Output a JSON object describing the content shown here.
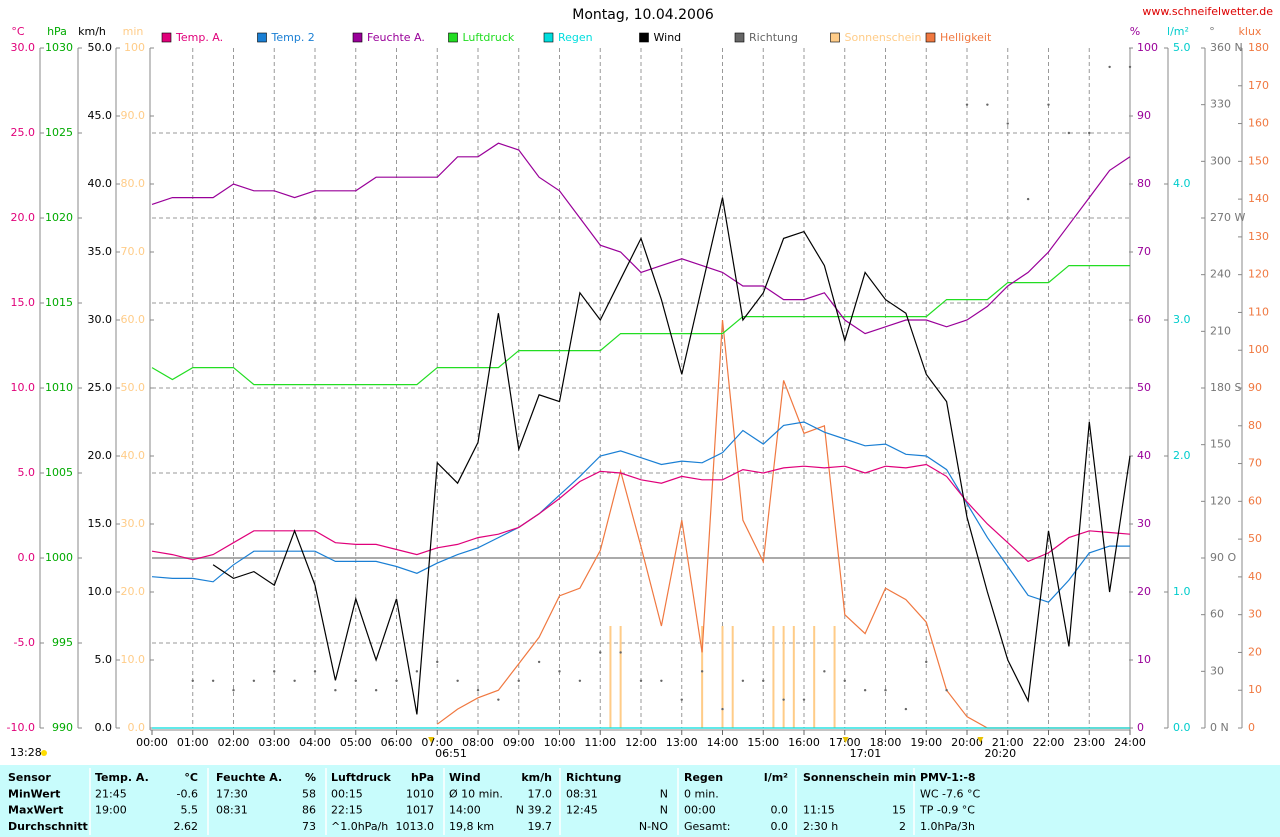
{
  "chart_data": {
    "type": "line",
    "title": "Montag, 10.04.2006",
    "source": "www.schneifelwetter.de",
    "updated": "13:28",
    "xlim": [
      0,
      24
    ],
    "xticks": [
      {
        "value": 0,
        "label": "00:00"
      },
      {
        "value": 1,
        "label": "01:00"
      },
      {
        "value": 2,
        "label": "02:00"
      },
      {
        "value": 3,
        "label": "03:00"
      },
      {
        "value": 4,
        "label": "04:00"
      },
      {
        "value": 5,
        "label": "05:00"
      },
      {
        "value": 6,
        "label": "06:00"
      },
      {
        "value": 7,
        "label": "07:00"
      },
      {
        "value": 8,
        "label": "08:00"
      },
      {
        "value": 9,
        "label": "09:00"
      },
      {
        "value": 10,
        "label": "10:00"
      },
      {
        "value": 11,
        "label": "11:00"
      },
      {
        "value": 12,
        "label": "12:00"
      },
      {
        "value": 13,
        "label": "13:00"
      },
      {
        "value": 14,
        "label": "14:00"
      },
      {
        "value": 15,
        "label": "15:00"
      },
      {
        "value": 16,
        "label": "16:00"
      },
      {
        "value": 17,
        "label": "17:00"
      },
      {
        "value": 18,
        "label": "18:00"
      },
      {
        "value": 19,
        "label": "19:00"
      },
      {
        "value": 20,
        "label": "20:00"
      },
      {
        "value": 21,
        "label": "21:00"
      },
      {
        "value": 22,
        "label": "22:00"
      },
      {
        "value": 23,
        "label": "23:00"
      },
      {
        "value": 24,
        "label": "24:00"
      }
    ],
    "grid": true,
    "events": [
      {
        "x": 6.85,
        "label": "06:51"
      },
      {
        "x": 17.02,
        "label": "17:01"
      },
      {
        "x": 20.33,
        "label": "20:20"
      }
    ],
    "axes": [
      {
        "unit": "°C",
        "color": "#e0007a",
        "grid": true,
        "lim": [
          -10,
          30
        ],
        "ticks": [
          {
            "value": -10,
            "label": "-10.0"
          },
          {
            "value": -5,
            "label": "-5.0"
          },
          {
            "value": 0,
            "label": "0.0"
          },
          {
            "value": 5,
            "label": "5.0"
          },
          {
            "value": 10,
            "label": "10.0"
          },
          {
            "value": 15,
            "label": "15.0"
          },
          {
            "value": 20,
            "label": "20.0"
          },
          {
            "value": 25,
            "label": "25.0"
          },
          {
            "value": 30,
            "label": "30.0"
          }
        ]
      },
      {
        "unit": "hPa",
        "color": "#00aa00",
        "lim": [
          990,
          1030
        ],
        "ticks": [
          990,
          995,
          1000,
          1005,
          1010,
          1015,
          1020,
          1025,
          1030
        ]
      },
      {
        "unit": "km/h",
        "color": "#000000",
        "lim": [
          0,
          50
        ],
        "ticks": [
          {
            "value": 0,
            "label": "0.0"
          },
          {
            "value": 5,
            "label": "5.0"
          },
          {
            "value": 10,
            "label": "10.0"
          },
          {
            "value": 15,
            "label": "15.0"
          },
          {
            "value": 20,
            "label": "20.0"
          },
          {
            "value": 25,
            "label": "25.0"
          },
          {
            "value": 30,
            "label": "30.0"
          },
          {
            "value": 35,
            "label": "35.0"
          },
          {
            "value": 40,
            "label": "40.0"
          },
          {
            "value": 45,
            "label": "45.0"
          },
          {
            "value": 50,
            "label": "50.0"
          }
        ]
      },
      {
        "unit": "min",
        "color": "#ffcc88",
        "lim": [
          0,
          100
        ],
        "ticks": [
          {
            "value": 0,
            "label": "0.0"
          },
          {
            "value": 10,
            "label": "10.0"
          },
          {
            "value": 20,
            "label": "20.0"
          },
          {
            "value": 30,
            "label": "30.0"
          },
          {
            "value": 40,
            "label": "40.0"
          },
          {
            "value": 50,
            "label": "50.0"
          },
          {
            "value": 60,
            "label": "60.0"
          },
          {
            "value": 70,
            "label": "70.0"
          },
          {
            "value": 80,
            "label": "80.0"
          },
          {
            "value": 90,
            "label": "90.0"
          },
          100
        ]
      },
      {
        "unit": "%",
        "color": "#990099",
        "lim": [
          0,
          100
        ],
        "ticks": [
          0,
          10,
          20,
          30,
          40,
          50,
          60,
          70,
          80,
          90,
          100
        ]
      },
      {
        "unit": "l/m²",
        "color": "#00cccc",
        "lim": [
          0,
          5
        ],
        "ticks": [
          {
            "value": 0,
            "label": "0.0"
          },
          {
            "value": 1,
            "label": "1.0"
          },
          {
            "value": 2,
            "label": "2.0"
          },
          {
            "value": 3,
            "label": "3.0"
          },
          {
            "value": 4,
            "label": "4.0"
          },
          {
            "value": 5,
            "label": "5.0"
          }
        ]
      },
      {
        "unit": "°",
        "color": "#777777",
        "lim": [
          0,
          360
        ],
        "ticks": [
          {
            "value": 0,
            "label": "0 N"
          },
          30,
          60,
          {
            "value": 90,
            "label": "90 O"
          },
          120,
          150,
          {
            "value": 180,
            "label": "180 S"
          },
          210,
          240,
          {
            "value": 270,
            "label": "270 W"
          },
          300,
          330,
          {
            "value": 360,
            "label": "360 N"
          }
        ]
      },
      {
        "unit": "klux",
        "color": "#f07840",
        "lim": [
          0,
          180
        ],
        "ticks": [
          0,
          10,
          20,
          30,
          40,
          50,
          60,
          70,
          80,
          90,
          100,
          110,
          120,
          130,
          140,
          150,
          160,
          170,
          180
        ]
      }
    ],
    "x": [
      0,
      0.5,
      1,
      1.5,
      2,
      2.5,
      3,
      3.5,
      4,
      4.5,
      5,
      5.5,
      6,
      6.5,
      7,
      7.5,
      8,
      8.5,
      9,
      9.5,
      10,
      10.5,
      11,
      11.5,
      12,
      12.5,
      13,
      13.5,
      14,
      14.5,
      15,
      15.5,
      16,
      16.5,
      17,
      17.5,
      18,
      18.5,
      19,
      19.5,
      20,
      20.5,
      21,
      21.5,
      22,
      22.5,
      23,
      23.5,
      24
    ],
    "series": [
      {
        "name": "Temp. A.",
        "color": "#e0007a",
        "axis": 0,
        "type": "line",
        "values": [
          0.4,
          0.2,
          -0.1,
          0.2,
          0.9,
          1.6,
          1.6,
          1.6,
          1.6,
          0.9,
          0.8,
          0.8,
          0.5,
          0.2,
          0.6,
          0.8,
          1.2,
          1.4,
          1.8,
          2.6,
          3.5,
          4.5,
          5.1,
          5.0,
          4.6,
          4.4,
          4.8,
          4.6,
          4.6,
          5.2,
          5.0,
          5.3,
          5.4,
          5.3,
          5.4,
          5.0,
          5.4,
          5.3,
          5.5,
          4.8,
          3.3,
          2.0,
          0.9,
          -0.2,
          0.3,
          1.2,
          1.6,
          1.5,
          1.4
        ]
      },
      {
        "name": "Temp. 2",
        "color": "#1a7fd4",
        "axis": 0,
        "type": "line",
        "values": [
          -1.1,
          -1.2,
          -1.2,
          -1.4,
          -0.4,
          0.4,
          0.4,
          0.4,
          0.4,
          -0.2,
          -0.2,
          -0.2,
          -0.5,
          -0.9,
          -0.3,
          0.2,
          0.6,
          1.2,
          1.8,
          2.6,
          3.7,
          4.8,
          6.0,
          6.3,
          5.9,
          5.5,
          5.7,
          5.6,
          6.2,
          7.5,
          6.7,
          7.8,
          8.0,
          7.4,
          7.0,
          6.6,
          6.7,
          6.1,
          6.0,
          5.2,
          3.2,
          1.2,
          -0.5,
          -2.2,
          -2.6,
          -1.3,
          0.3,
          0.7,
          0.7
        ]
      },
      {
        "name": "Feuchte A.",
        "color": "#990099",
        "axis": 4,
        "type": "line",
        "values": [
          77,
          78,
          78,
          78,
          80,
          79,
          79,
          78,
          79,
          79,
          79,
          81,
          81,
          81,
          81,
          84,
          84,
          86,
          85,
          81,
          79,
          75,
          71,
          70,
          67,
          68,
          69,
          68,
          67,
          65,
          65,
          63,
          63,
          64,
          60,
          58,
          59,
          60,
          60,
          59,
          60,
          62,
          65,
          67,
          70,
          74,
          78,
          82,
          84
        ]
      },
      {
        "name": "Luftdruck",
        "color": "#22dd22",
        "axis": 1,
        "type": "line",
        "values": [
          1011.2,
          1010.5,
          1011.2,
          1011.2,
          1011.2,
          1010.2,
          1010.2,
          1010.2,
          1010.2,
          1010.2,
          1010.2,
          1010.2,
          1010.2,
          1010.2,
          1011.2,
          1011.2,
          1011.2,
          1011.2,
          1012.2,
          1012.2,
          1012.2,
          1012.2,
          1012.2,
          1013.2,
          1013.2,
          1013.2,
          1013.2,
          1013.2,
          1013.2,
          1014.2,
          1014.2,
          1014.2,
          1014.2,
          1014.2,
          1014.2,
          1014.2,
          1014.2,
          1014.2,
          1014.2,
          1015.2,
          1015.2,
          1015.2,
          1016.2,
          1016.2,
          1016.2,
          1017.2,
          1017.2,
          1017.2,
          1017.2
        ]
      },
      {
        "name": "Regen",
        "color": "#00dddd",
        "axis": 5,
        "type": "line",
        "values": [
          0,
          0,
          0,
          0,
          0,
          0,
          0,
          0,
          0,
          0,
          0,
          0,
          0,
          0,
          0,
          0,
          0,
          0,
          0,
          0,
          0,
          0,
          0,
          0,
          0,
          0,
          0,
          0,
          0,
          0,
          0,
          0,
          0,
          0,
          0,
          0,
          0,
          0,
          0,
          0,
          0,
          0,
          0,
          0,
          0,
          0,
          0,
          0,
          0
        ]
      },
      {
        "name": "Wind",
        "color": "#000000",
        "axis": 2,
        "type": "line",
        "values": [
          null,
          null,
          null,
          12,
          11,
          11.5,
          10.5,
          14.5,
          10.5,
          3.5,
          9.5,
          5,
          9.5,
          1,
          19.5,
          18,
          21,
          30.5,
          20.5,
          24.5,
          24,
          32,
          30,
          33,
          36,
          31.5,
          26,
          32.5,
          39,
          30,
          32,
          36,
          36.5,
          34,
          28.5,
          33.5,
          31.5,
          30.5,
          26,
          24,
          15.5,
          10,
          5,
          2,
          14.5,
          6,
          22.5,
          10,
          20
        ]
      },
      {
        "name": "Richtung",
        "color": "#666666",
        "axis": 6,
        "type": "scatter",
        "values": [
          null,
          null,
          25,
          25,
          20,
          25,
          30,
          25,
          30,
          20,
          25,
          20,
          25,
          30,
          35,
          25,
          20,
          15,
          25,
          35,
          30,
          25,
          40,
          40,
          25,
          25,
          15,
          30,
          10,
          25,
          25,
          15,
          15,
          30,
          25,
          20,
          20,
          10,
          35,
          20,
          330,
          330,
          320,
          280,
          330,
          315,
          315,
          350,
          350
        ]
      },
      {
        "name": "Sonnenschein",
        "color": "#ffcc88",
        "axis": 3,
        "type": "bar",
        "x": [
          11.25,
          11.5,
          13.5,
          14,
          14.25,
          15.25,
          15.5,
          15.75,
          16.25,
          16.75
        ],
        "values": [
          15,
          15,
          15,
          15,
          15,
          15,
          15,
          15,
          15,
          15
        ]
      },
      {
        "name": "Helligkeit",
        "color": "#f07840",
        "axis": 7,
        "type": "line",
        "values": [
          null,
          null,
          null,
          null,
          null,
          null,
          null,
          null,
          null,
          null,
          null,
          null,
          null,
          null,
          1,
          5,
          8,
          10,
          17,
          24,
          35,
          37,
          47,
          68,
          48,
          27,
          55,
          20,
          108,
          55,
          44,
          92,
          78,
          80,
          30,
          25,
          37,
          34,
          28,
          10,
          3,
          0,
          0,
          0,
          0,
          0,
          0,
          0,
          0
        ]
      }
    ]
  },
  "table": {
    "rows": [
      [
        "Sensor",
        "Temp. A.",
        "°C",
        "Feuchte A.",
        "%",
        "Luftdruck",
        "hPa",
        "Wind",
        "km/h",
        "Richtung",
        null,
        "Regen",
        "l/m²",
        "Sonnenschein min",
        null,
        "PMV-1:-8"
      ],
      [
        "MinWert",
        "21:45",
        "-0.6",
        "17:30",
        "58",
        "00:15",
        "1010",
        "Ø 10 min.",
        "17.0",
        "08:31",
        "N",
        "0 min.",
        null,
        null,
        null,
        "WC -7.6 °C"
      ],
      [
        "MaxWert",
        "19:00",
        "5.5",
        "08:31",
        "86",
        "22:15",
        "1017",
        "14:00",
        "N 39.2",
        "12:45",
        "N",
        "00:00",
        "0.0",
        "11:15",
        "15",
        "TP -0.9 °C"
      ],
      [
        "Durchschnitt",
        null,
        "2.62",
        null,
        "73",
        "^1.0hPa/h",
        "1013.0",
        "19,8 km",
        "19.7",
        null,
        "N-NO",
        "Gesamt:",
        "0.0",
        "2:30 h",
        "2",
        "1.0hPa/3h"
      ]
    ]
  }
}
